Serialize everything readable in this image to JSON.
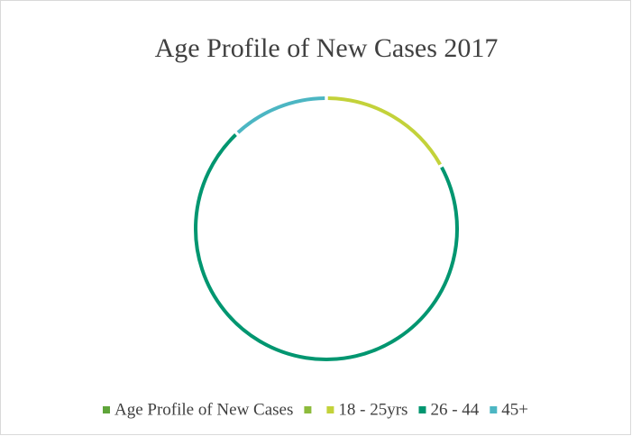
{
  "chart_data": {
    "type": "doughnut",
    "title": "Age Profile of New Cases 2017",
    "categories": [
      "Age Profile of New Cases",
      null,
      "18 - 25yrs",
      "26 - 44",
      "45+"
    ],
    "values": [
      0,
      0,
      17,
      71,
      12
    ],
    "colors": [
      "#5fa53a",
      "#8dbb3c",
      "#c3d23a",
      "#009670",
      "#4cb6c3"
    ],
    "legend": "bottom"
  }
}
